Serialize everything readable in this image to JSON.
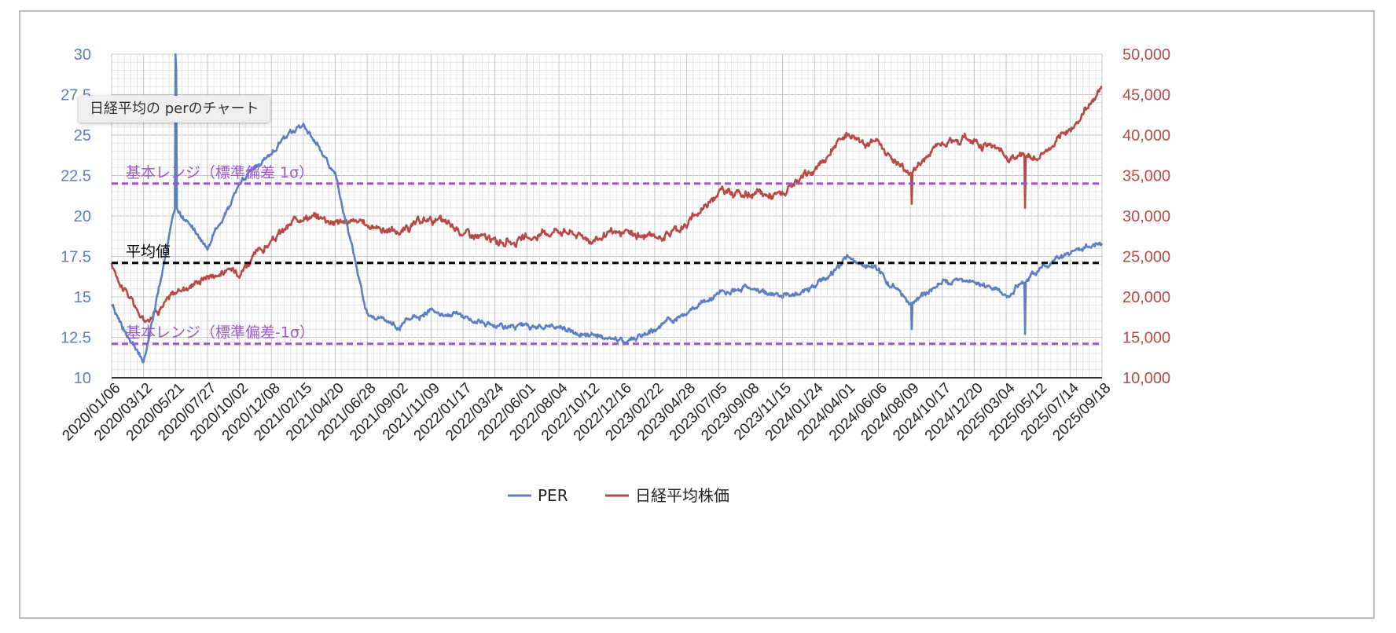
{
  "tooltip": "日経平均の perのチャート",
  "colors": {
    "per": "#5b80c2",
    "nikkei": "#b84a46",
    "band": "#9b59c9",
    "mean": "#000000",
    "grid": "#cccccc"
  },
  "chart_data": {
    "type": "line",
    "categories": [
      "2020/01/06",
      "2020/03/12",
      "2020/05/21",
      "2020/07/27",
      "2020/10/02",
      "2020/12/08",
      "2021/02/15",
      "2021/04/20",
      "2021/06/28",
      "2021/09/02",
      "2021/11/09",
      "2022/01/17",
      "2022/03/24",
      "2022/06/01",
      "2022/08/04",
      "2022/10/12",
      "2022/12/16",
      "2023/02/22",
      "2023/04/28",
      "2023/07/05",
      "2023/09/08",
      "2023/11/15",
      "2024/01/24",
      "2024/04/01",
      "2024/06/06",
      "2024/08/09",
      "2024/10/17",
      "2024/12/20",
      "2025/03/04",
      "2025/05/12",
      "2025/07/14",
      "2025/09/18"
    ],
    "left_axis": {
      "ticks": [
        "10",
        "12.5",
        "15",
        "17.5",
        "20",
        "22.5",
        "25",
        "27.5",
        "30"
      ],
      "ylim": [
        10,
        30
      ]
    },
    "right_axis": {
      "ticks": [
        "10,000",
        "15,000",
        "20,000",
        "25,000",
        "30,000",
        "35,000",
        "40,000",
        "45,000",
        "50,000"
      ],
      "ylim": [
        10000,
        50000
      ]
    },
    "series": [
      {
        "name": "PER",
        "axis": "left",
        "values": [
          14.4,
          10.8,
          20.5,
          18.0,
          22.0,
          24.0,
          25.8,
          22.5,
          14.0,
          13.2,
          14.2,
          13.8,
          13.2,
          13.0,
          13.2,
          12.6,
          12.3,
          13.0,
          14.0,
          15.3,
          15.6,
          15.0,
          15.5,
          17.3,
          16.6,
          14.5,
          16.0,
          16.0,
          15.2,
          16.5,
          17.8,
          18.3
        ]
      },
      {
        "name": "日経平均株価",
        "axis": "right",
        "values": [
          23800,
          17000,
          20500,
          22700,
          23400,
          26800,
          30200,
          29500,
          28900,
          28000,
          29700,
          28000,
          26800,
          27000,
          28500,
          27200,
          27800,
          27300,
          28900,
          33200,
          32600,
          32600,
          35600,
          40300,
          38800,
          35200,
          39500,
          39500,
          37500,
          37200,
          40500,
          46000
        ]
      }
    ],
    "reference_lines": [
      {
        "label": "基本レンジ（標準偏差 1σ）",
        "value": 22.0
      },
      {
        "label": "平均値",
        "value": 17.1
      },
      {
        "label": "基本レンジ（標準偏差-1σ）",
        "value": 12.1
      }
    ],
    "legend": "bottom",
    "grid": true
  }
}
